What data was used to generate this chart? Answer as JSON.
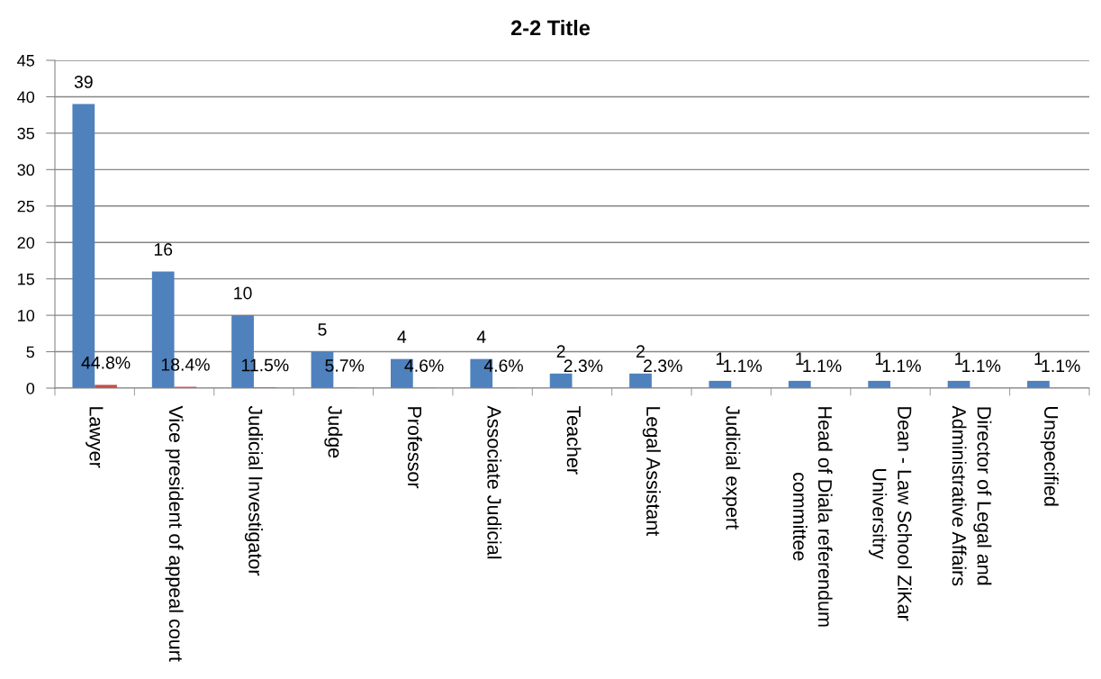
{
  "chart_data": {
    "type": "bar",
    "title": "2-2 Title",
    "categories": [
      "Lawyer",
      "Vice president of appeal court",
      "Judicial Investigator",
      "Judge",
      "Professor",
      "Associate Judicial",
      "Teacher",
      "Legal Assistant",
      "Judicial expert",
      "Head of Diala referendum\ncommittee",
      "Dean - Law School ZiKar\nUniversitry",
      "Director of Legal and\nAdministrative Affairs",
      "Unspecified"
    ],
    "series": [
      {
        "color": "#4f81bd",
        "values": [
          39,
          16,
          10,
          5,
          4,
          4,
          2,
          2,
          1,
          1,
          1,
          1,
          1
        ],
        "value_labels": [
          "39",
          "16",
          "10",
          "5",
          "4",
          "4",
          "2",
          "2",
          "1",
          "1",
          "1",
          "1",
          "1"
        ]
      },
      {
        "color": "#c0504d",
        "values": [
          0.448,
          0.184,
          0.115,
          0.057,
          0.046,
          0.046,
          0.023,
          0.023,
          0.011,
          0.011,
          0.011,
          0.011,
          0.011
        ],
        "value_labels": [
          "44.8%",
          "18.4%",
          "11.5%",
          "5.7%",
          "4.6%",
          "4.6%",
          "2.3%",
          "2.3%",
          "1.1%",
          "1.1%",
          "1.1%",
          "1.1%",
          "1.1%"
        ]
      }
    ],
    "ylim": [
      0,
      45
    ],
    "yticks": [
      0,
      5,
      10,
      15,
      20,
      25,
      30,
      35,
      40,
      45
    ],
    "grid": "y"
  }
}
